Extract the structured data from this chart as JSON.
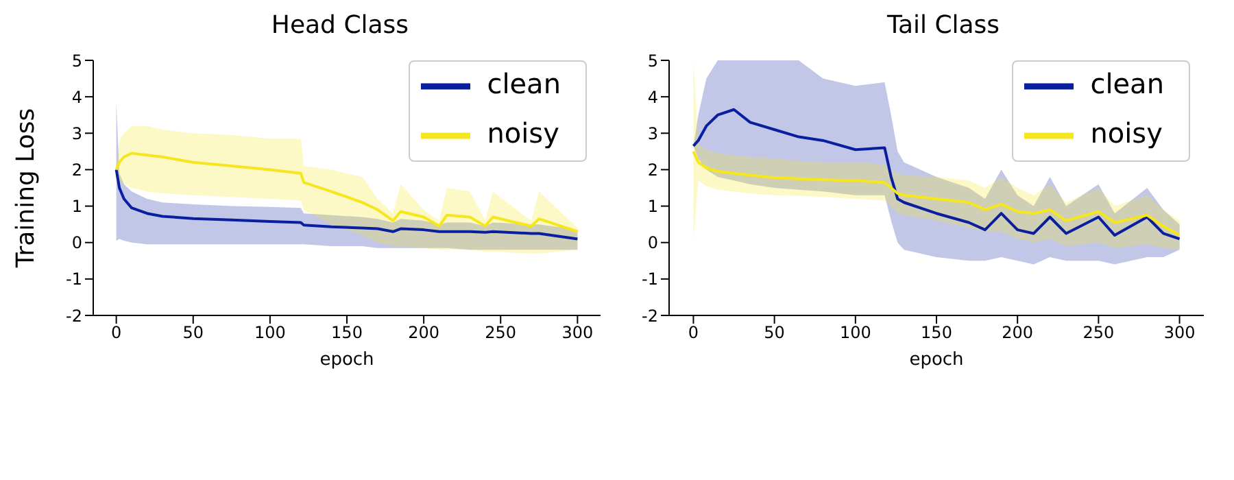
{
  "chart_data": [
    {
      "type": "line",
      "title": "Head Class",
      "xlabel": "epoch",
      "ylabel": "Training Loss",
      "x": [
        0,
        2,
        5,
        10,
        20,
        30,
        50,
        75,
        100,
        120,
        122,
        140,
        160,
        170,
        180,
        185,
        200,
        210,
        215,
        230,
        240,
        245,
        270,
        275,
        300
      ],
      "xlim": [
        -15,
        315
      ],
      "xticks": [
        0,
        50,
        100,
        150,
        200,
        250,
        300
      ],
      "ylim": [
        -2,
        5
      ],
      "yticks": [
        -2,
        -1,
        0,
        1,
        2,
        3,
        4,
        5
      ],
      "grid": false,
      "legend": "top right",
      "marker": "none",
      "line_style": "solid",
      "series": [
        {
          "name": "clean",
          "color": "#0a1ea0",
          "values": [
            2.0,
            1.5,
            1.2,
            0.95,
            0.8,
            0.72,
            0.66,
            0.62,
            0.58,
            0.55,
            0.48,
            0.43,
            0.4,
            0.38,
            0.3,
            0.38,
            0.35,
            0.3,
            0.3,
            0.3,
            0.28,
            0.3,
            0.25,
            0.25,
            0.1
          ],
          "lower": [
            0.05,
            0.1,
            0.05,
            0.0,
            -0.05,
            -0.05,
            -0.05,
            -0.05,
            -0.05,
            -0.05,
            -0.05,
            -0.1,
            -0.1,
            -0.15,
            -0.15,
            -0.15,
            -0.15,
            -0.15,
            -0.15,
            -0.2,
            -0.2,
            -0.2,
            -0.2,
            -0.2,
            -0.2
          ],
          "upper": [
            3.85,
            1.9,
            1.6,
            1.4,
            1.2,
            1.1,
            1.05,
            1.0,
            0.98,
            0.95,
            0.8,
            0.75,
            0.7,
            0.65,
            0.55,
            0.65,
            0.6,
            0.5,
            0.55,
            0.55,
            0.45,
            0.55,
            0.5,
            0.5,
            0.35
          ]
        },
        {
          "name": "noisy",
          "color": "#f5e61e",
          "values": [
            2.0,
            2.2,
            2.35,
            2.45,
            2.4,
            2.35,
            2.2,
            2.1,
            2.0,
            1.9,
            1.65,
            1.4,
            1.1,
            0.9,
            0.6,
            0.85,
            0.7,
            0.45,
            0.75,
            0.7,
            0.45,
            0.7,
            0.45,
            0.65,
            0.3
          ],
          "lower": [
            2.0,
            1.7,
            1.6,
            1.5,
            1.4,
            1.35,
            1.3,
            1.25,
            1.2,
            1.15,
            0.9,
            0.5,
            0.2,
            0.0,
            -0.1,
            -0.1,
            -0.15,
            -0.2,
            -0.2,
            -0.2,
            -0.25,
            -0.25,
            -0.3,
            -0.3,
            -0.2
          ],
          "upper": [
            2.0,
            2.8,
            3.0,
            3.2,
            3.2,
            3.1,
            3.0,
            2.95,
            2.85,
            2.85,
            2.1,
            2.0,
            1.8,
            1.2,
            0.8,
            1.6,
            0.9,
            0.6,
            1.5,
            1.4,
            0.6,
            1.4,
            0.6,
            1.4,
            0.4
          ]
        }
      ]
    },
    {
      "type": "line",
      "title": "Tail Class",
      "xlabel": "epoch",
      "x": [
        0,
        3,
        8,
        15,
        25,
        35,
        50,
        65,
        80,
        100,
        118,
        122,
        126,
        130,
        150,
        170,
        180,
        190,
        200,
        210,
        220,
        230,
        250,
        260,
        280,
        290,
        300
      ],
      "xlim": [
        -15,
        315
      ],
      "xticks": [
        0,
        50,
        100,
        150,
        200,
        250,
        300
      ],
      "ylim": [
        -2,
        5
      ],
      "yticks": [
        -2,
        -1,
        0,
        1,
        2,
        3,
        4,
        5
      ],
      "grid": false,
      "legend": "top right",
      "marker": "none",
      "line_style": "solid",
      "series": [
        {
          "name": "clean",
          "color": "#0a1ea0",
          "values": [
            2.65,
            2.8,
            3.2,
            3.5,
            3.65,
            3.3,
            3.1,
            2.9,
            2.8,
            2.55,
            2.6,
            1.8,
            1.2,
            1.1,
            0.8,
            0.55,
            0.35,
            0.8,
            0.35,
            0.25,
            0.7,
            0.25,
            0.7,
            0.2,
            0.7,
            0.25,
            0.1
          ],
          "lower": [
            2.65,
            2.3,
            2.0,
            1.8,
            1.7,
            1.6,
            1.5,
            1.45,
            1.4,
            1.3,
            1.3,
            0.6,
            0.0,
            -0.2,
            -0.4,
            -0.5,
            -0.5,
            -0.4,
            -0.5,
            -0.6,
            -0.4,
            -0.5,
            -0.5,
            -0.6,
            -0.4,
            -0.4,
            -0.2
          ],
          "upper": [
            2.65,
            3.5,
            4.5,
            5,
            5,
            5,
            5,
            5,
            4.5,
            4.3,
            4.4,
            3.5,
            2.5,
            2.2,
            1.8,
            1.5,
            1.2,
            2.0,
            1.3,
            1.0,
            1.8,
            1.0,
            1.6,
            0.8,
            1.5,
            0.9,
            0.5
          ]
        },
        {
          "name": "noisy",
          "color": "#f5e61e",
          "values": [
            2.5,
            2.2,
            2.05,
            1.95,
            1.9,
            1.85,
            1.78,
            1.75,
            1.72,
            1.7,
            1.65,
            1.5,
            1.35,
            1.3,
            1.2,
            1.1,
            0.9,
            1.05,
            0.85,
            0.8,
            0.9,
            0.6,
            0.85,
            0.55,
            0.75,
            0.45,
            0.2
          ],
          "lower": [
            0.05,
            1.7,
            1.55,
            1.45,
            1.4,
            1.35,
            1.3,
            1.28,
            1.25,
            1.2,
            1.15,
            1.0,
            0.8,
            0.75,
            0.6,
            0.4,
            0.3,
            0.3,
            0.1,
            0.0,
            0.1,
            -0.1,
            0.0,
            -0.15,
            -0.05,
            -0.15,
            -0.2
          ],
          "upper": [
            5,
            2.7,
            2.55,
            2.45,
            2.4,
            2.35,
            2.3,
            2.25,
            2.2,
            2.2,
            2.15,
            2.0,
            1.9,
            1.85,
            1.8,
            1.7,
            1.5,
            1.8,
            1.5,
            1.3,
            1.6,
            1.1,
            1.5,
            1.0,
            1.3,
            0.9,
            0.6
          ]
        }
      ]
    }
  ]
}
